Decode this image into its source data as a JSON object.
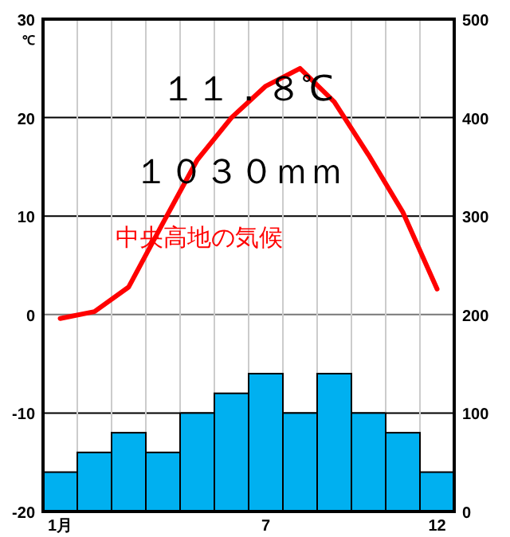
{
  "chart_data": {
    "type": "bar",
    "categories": [
      "1月",
      null,
      null,
      null,
      null,
      null,
      "7",
      null,
      null,
      null,
      null,
      "12"
    ],
    "ylabel": "℃",
    "annotations": [
      "１１．８℃",
      "１０３０ｍｍ",
      "中央高地の気候"
    ],
    "ylim": [
      -20,
      30
    ],
    "yticks": [
      -20,
      -10,
      0,
      10,
      20,
      30
    ],
    "y2lim": [
      0,
      500
    ],
    "y2ticks": [
      0,
      100,
      200,
      300,
      400,
      500
    ],
    "grid": true,
    "marker": "none",
    "line_style": "solid",
    "series": [
      {
        "axis": "y2",
        "color": "#00b0f0",
        "values": [
          40,
          60,
          80,
          60,
          100,
          120,
          140,
          100,
          140,
          100,
          80,
          40
        ]
      },
      {
        "type": "line",
        "axis": "y",
        "color": "#ff0000",
        "values": [
          -0.4,
          0.3,
          2.8,
          9.3,
          15.7,
          20,
          23.2,
          25,
          21.6,
          16.2,
          10.4,
          2.6
        ]
      }
    ]
  }
}
